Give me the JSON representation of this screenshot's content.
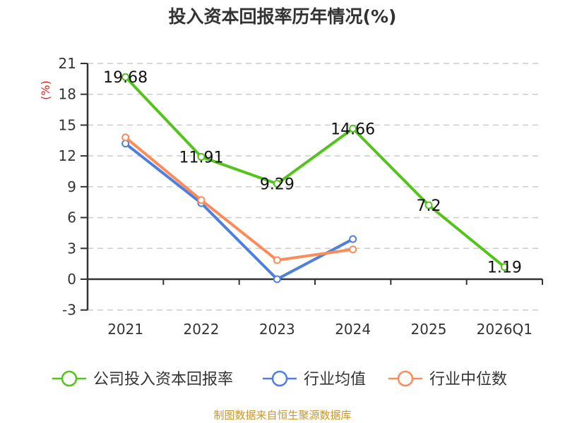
{
  "title": "投入资本回报率历年情况(%)",
  "source": "制图数据来自恒生聚源数据库",
  "colors": {
    "company": "#52c41a",
    "industry_avg": "#4e7fe0",
    "industry_median": "#fa8c5a",
    "axis": "#333333",
    "grid": "#cccccc",
    "unit_label": "#e02020",
    "source": "#c8962e"
  },
  "chart_data": {
    "type": "line",
    "title": "投入资本回报率历年情况(%)",
    "xlabel": "",
    "ylabel": "(%)",
    "ylim": [
      -3,
      21
    ],
    "yticks": [
      -3,
      0,
      3,
      6,
      9,
      12,
      15,
      18,
      21
    ],
    "grid": true,
    "legend_position": "bottom",
    "categories": [
      "2021",
      "2022",
      "2023",
      "2024",
      "2025",
      "2026Q1"
    ],
    "series": [
      {
        "name": "公司投入资本回报率",
        "values": [
          19.68,
          11.91,
          9.29,
          14.66,
          7.2,
          1.19
        ],
        "labels_shown": true
      },
      {
        "name": "行业均值",
        "values": [
          13.2,
          7.4,
          0.0,
          3.9,
          null,
          null
        ],
        "labels_shown": false
      },
      {
        "name": "行业中位数",
        "values": [
          13.8,
          7.7,
          1.85,
          2.9,
          null,
          null
        ],
        "labels_shown": false
      }
    ]
  }
}
